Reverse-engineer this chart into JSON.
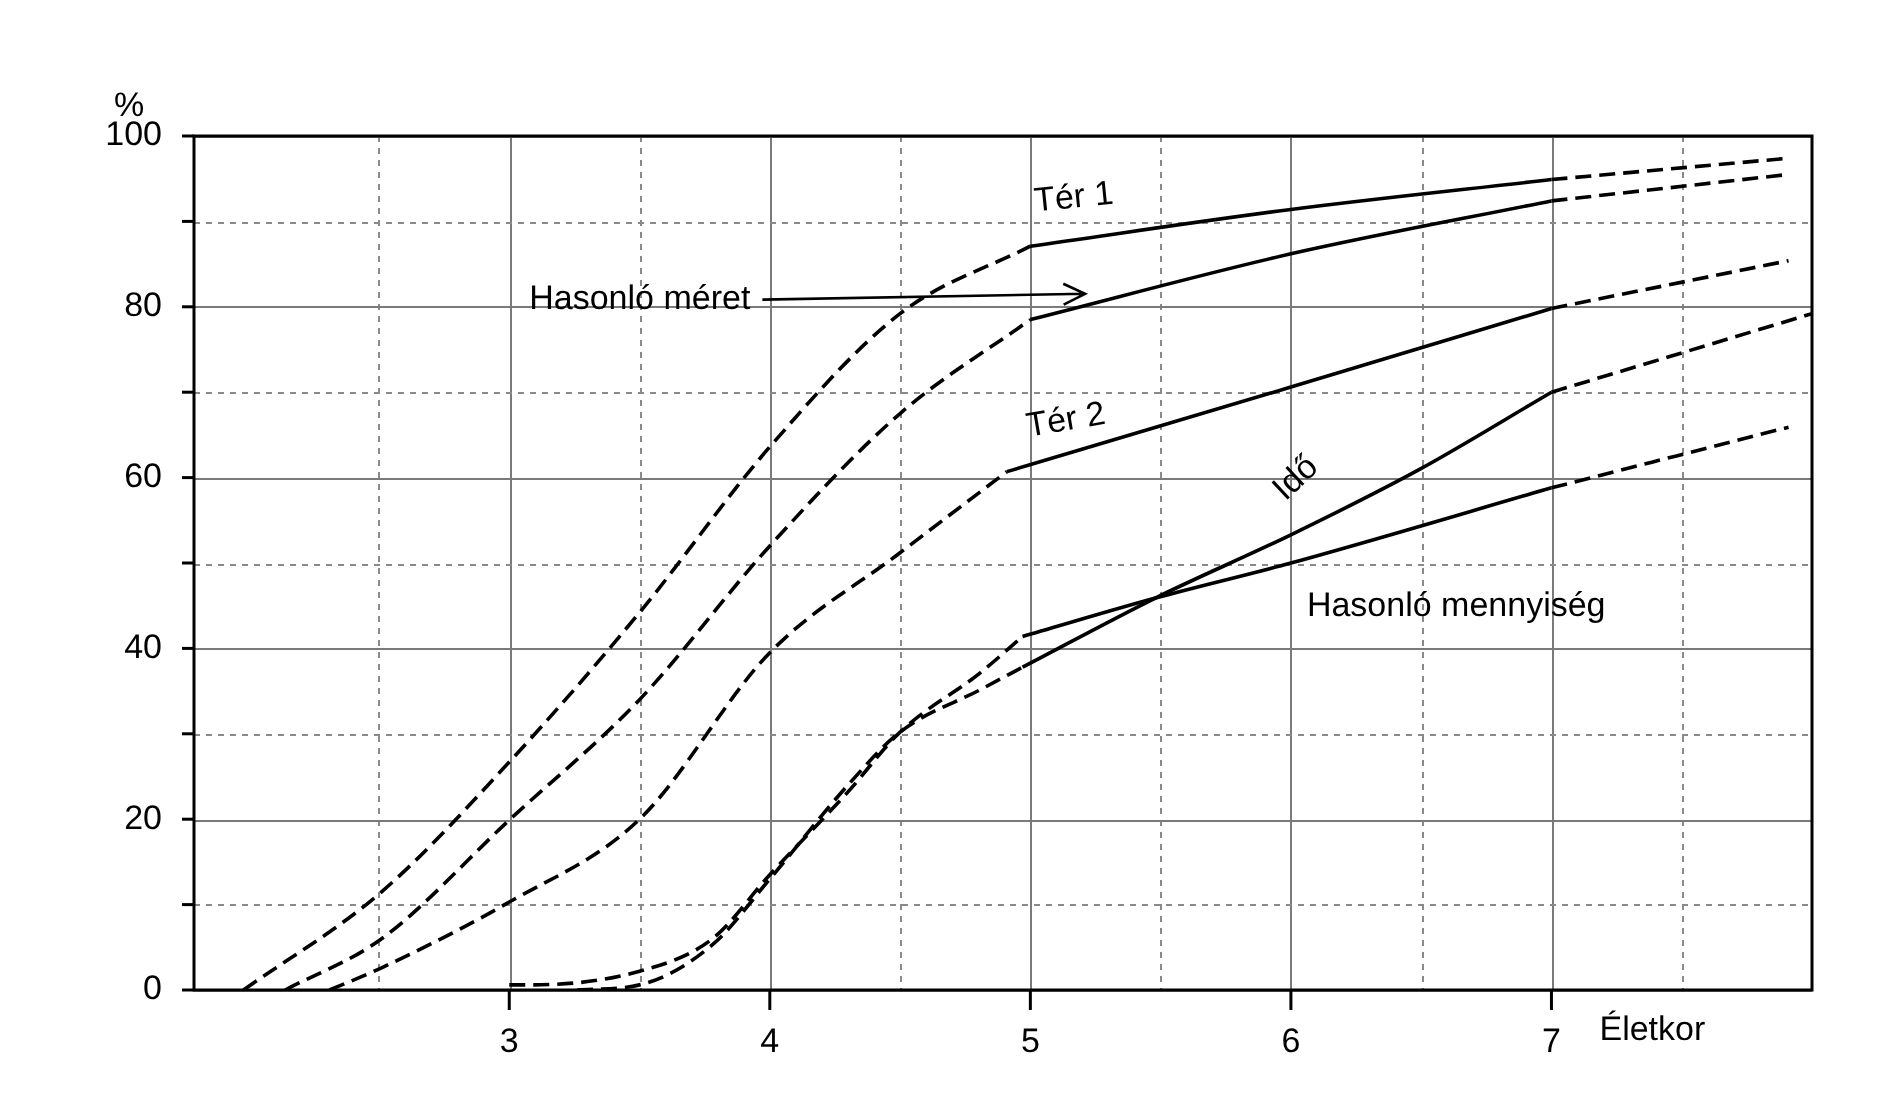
{
  "chart_data": {
    "type": "line",
    "xlabel": "Életkor",
    "ylabel": "%",
    "xlim": [
      1.79,
      8.0
    ],
    "ylim": [
      0,
      100
    ],
    "xticks": [
      {
        "value": 2.5,
        "label": null
      },
      3,
      {
        "value": 3.5,
        "label": null
      },
      4,
      {
        "value": 4.5,
        "label": null
      },
      5,
      {
        "value": 5.5,
        "label": null
      },
      6,
      {
        "value": 6.5,
        "label": null
      },
      7,
      {
        "value": 7.5,
        "label": null
      }
    ],
    "yticks": [
      0,
      {
        "value": 10,
        "label": null
      },
      20,
      {
        "value": 30,
        "label": null
      },
      40,
      {
        "value": 50,
        "label": null
      },
      60,
      {
        "value": 70,
        "label": null
      },
      80,
      {
        "value": 90,
        "label": null
      },
      100
    ],
    "grid": true,
    "legend": false,
    "marker": "none",
    "series": [
      {
        "color": "#000000",
        "line_style": "dashed",
        "x": [
          1.98,
          2.51,
          3,
          3.5,
          4,
          4.5,
          5
        ],
        "values": [
          0,
          11.5,
          26.7,
          44.2,
          63.6,
          79.2,
          87.1
        ]
      },
      {
        "name": "Tér 1",
        "color": "#000000",
        "line_style": "solid",
        "x": [
          5,
          6,
          7
        ],
        "values": [
          87.1,
          91.4,
          94.9
        ]
      },
      {
        "color": "#000000",
        "line_style": "dashed",
        "x": [
          7,
          7.91
        ],
        "values": [
          94.9,
          97.4
        ]
      },
      {
        "color": "#000000",
        "line_style": "dashed",
        "x": [
          2.14,
          2.51,
          3,
          3.5,
          4,
          4.5,
          5
        ],
        "values": [
          0,
          6,
          19.9,
          34,
          52,
          67.5,
          78.5
        ]
      },
      {
        "name": "Hasonló méret",
        "color": "#000000",
        "line_style": "solid",
        "x": [
          5,
          6,
          7
        ],
        "values": [
          78.5,
          86.2,
          92.4
        ]
      },
      {
        "color": "#000000",
        "line_style": "dashed",
        "x": [
          7,
          7.91
        ],
        "values": [
          92.4,
          95.5
        ]
      },
      {
        "color": "#000000",
        "line_style": "dashed",
        "x": [
          2.31,
          2.51,
          3,
          3.5,
          4,
          4.5,
          4.91
        ],
        "values": [
          0,
          2.6,
          10.3,
          20,
          39.5,
          51.2,
          60.7
        ]
      },
      {
        "name": "Tér 2",
        "color": "#000000",
        "line_style": "solid",
        "x": [
          4.91,
          6,
          7
        ],
        "values": [
          60.7,
          70.6,
          79.8
        ]
      },
      {
        "color": "#000000",
        "line_style": "dashed",
        "x": [
          7,
          7.91
        ],
        "values": [
          79.8,
          85.4
        ]
      },
      {
        "color": "#000000",
        "line_style": "dashed",
        "x": [
          3,
          3.08,
          3.5,
          3.78,
          4,
          4.3,
          4.5,
          4.81,
          4.97
        ],
        "values": [
          0.6,
          0.6,
          2.2,
          6,
          13.5,
          23.2,
          30.2,
          37.2,
          41.4
        ]
      },
      {
        "name": "Hasonló mennyiség",
        "color": "#000000",
        "line_style": "solid",
        "x": [
          4.97,
          5.48,
          6,
          7
        ],
        "values": [
          41.4,
          45.9,
          50,
          58.8
        ]
      },
      {
        "color": "#000000",
        "line_style": "dashed",
        "x": [
          7,
          7.91
        ],
        "values": [
          58.8,
          65.9
        ]
      },
      {
        "color": "#000000",
        "line_style": "dashed",
        "x": [
          3.26,
          3.5,
          3.78,
          4,
          4.3,
          4.5,
          4.81,
          4.97
        ],
        "values": [
          0,
          0.6,
          5.3,
          13,
          24,
          30.2,
          35.2,
          37.8
        ]
      },
      {
        "name": "Idő",
        "color": "#000000",
        "line_style": "solid",
        "x": [
          4.97,
          5.48,
          6,
          6.49,
          7
        ],
        "values": [
          37.8,
          45.9,
          53.3,
          60.9,
          70
        ]
      },
      {
        "color": "#000000",
        "line_style": "dashed",
        "x": [
          7,
          8.0
        ],
        "values": [
          70,
          79.2
        ]
      }
    ]
  }
}
